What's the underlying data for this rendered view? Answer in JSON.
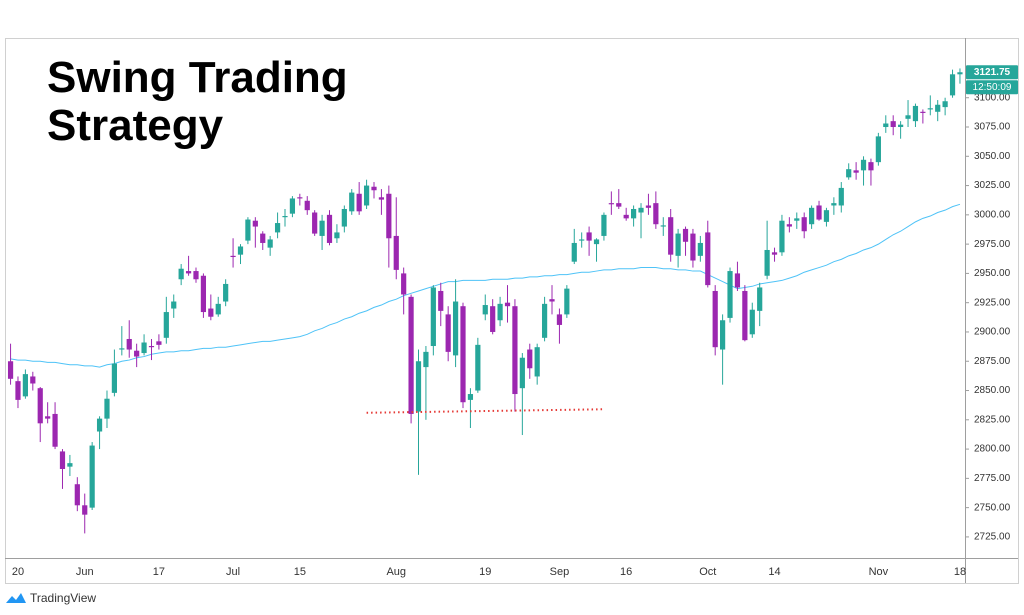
{
  "chart_data": {
    "type": "candlestick",
    "title": "Swing Trading Strategy",
    "brand": "TradingView",
    "up_color": "#26a69a",
    "down_color": "#9c27b0",
    "ylim": [
      2707,
      3151
    ],
    "yticks": [
      {
        "value": 2725,
        "label": "2725.00"
      },
      {
        "value": 2750,
        "label": "2750.00"
      },
      {
        "value": 2775,
        "label": "2775.00"
      },
      {
        "value": 2800,
        "label": "2800.00"
      },
      {
        "value": 2825,
        "label": "2825.00"
      },
      {
        "value": 2850,
        "label": "2850.00"
      },
      {
        "value": 2875,
        "label": "2875.00"
      },
      {
        "value": 2900,
        "label": "2900.00"
      },
      {
        "value": 2925,
        "label": "2925.00"
      },
      {
        "value": 2950,
        "label": "2950.00"
      },
      {
        "value": 2975,
        "label": "2975.00"
      },
      {
        "value": 3000,
        "label": "3000.00"
      },
      {
        "value": 3025,
        "label": "3025.00"
      },
      {
        "value": 3050,
        "label": "3050.00"
      },
      {
        "value": 3075,
        "label": "3075.00"
      },
      {
        "value": 3100,
        "label": "3100.00"
      }
    ],
    "grid": false,
    "last_price": 3121.75,
    "countdown": "12:50:09",
    "categories": [
      null,
      "20",
      null,
      null,
      null,
      null,
      null,
      null,
      null,
      null,
      "Jun",
      null,
      null,
      null,
      null,
      null,
      null,
      null,
      null,
      null,
      "17",
      null,
      null,
      null,
      null,
      null,
      null,
      null,
      null,
      null,
      "Jul",
      null,
      null,
      null,
      null,
      null,
      null,
      null,
      null,
      "15",
      null,
      null,
      null,
      null,
      null,
      null,
      null,
      null,
      null,
      null,
      null,
      null,
      "Aug",
      null,
      null,
      null,
      null,
      null,
      null,
      null,
      null,
      null,
      null,
      null,
      "19",
      null,
      null,
      null,
      null,
      null,
      null,
      null,
      null,
      null,
      "Sep",
      null,
      null,
      null,
      null,
      null,
      null,
      null,
      null,
      "16",
      null,
      null,
      null,
      null,
      null,
      null,
      null,
      null,
      null,
      null,
      "Oct",
      null,
      null,
      null,
      null,
      null,
      null,
      null,
      null,
      "14",
      null,
      null,
      null,
      null,
      null,
      null,
      null,
      null,
      null,
      null,
      null,
      null,
      null,
      "Nov",
      null,
      null,
      null,
      null,
      null,
      null,
      null,
      null,
      null,
      null,
      "18"
    ],
    "open": [
      2875,
      2858,
      2845,
      2862,
      2852,
      2828,
      2830,
      2798,
      2785,
      2770,
      2752,
      2750,
      2815,
      2826,
      2848,
      2885,
      2894,
      2884,
      2882,
      2888,
      2892,
      2895,
      2920,
      2945,
      2952,
      2952,
      2948,
      2920,
      2915,
      2926,
      2965,
      2966,
      2978,
      2995,
      2984,
      2972,
      2985,
      2998,
      3001,
      3015,
      3012,
      3002,
      2982,
      3000,
      2980,
      2990,
      3003,
      3018,
      3008,
      3024,
      3015,
      3018,
      2982,
      2950,
      2930,
      2832,
      2870,
      2888,
      2935,
      2915,
      2880,
      2922,
      2842,
      2850,
      2915,
      2922,
      2910,
      2925,
      2922,
      2852,
      2885,
      2862,
      2895,
      2928,
      2915,
      2915,
      2960,
      2978,
      2985,
      2975,
      2982,
      3010,
      3010,
      3000,
      2997,
      3002,
      3008,
      3010,
      2990,
      2998,
      2965,
      2988,
      2984,
      2965,
      2985,
      2935,
      2885,
      2912,
      2950,
      2935,
      2898,
      2918,
      2948,
      2968,
      2968,
      2992,
      2995,
      2998,
      2992,
      3008,
      2994,
      3008,
      3008,
      3032,
      3038,
      3038,
      3045,
      3045,
      3075,
      3080,
      3075,
      3082,
      3080,
      3088,
      3090,
      3088,
      3092,
      3102,
      3120
    ],
    "high": [
      2890,
      2862,
      2868,
      2866,
      2853,
      2840,
      2840,
      2800,
      2795,
      2776,
      2762,
      2806,
      2828,
      2850,
      2885,
      2905,
      2910,
      2890,
      2898,
      2894,
      2898,
      2930,
      2932,
      2958,
      2965,
      2955,
      2950,
      2932,
      2930,
      2945,
      2980,
      2975,
      2998,
      2998,
      2986,
      2982,
      3002,
      3005,
      3016,
      3018,
      3016,
      3004,
      3000,
      3004,
      2992,
      3008,
      3022,
      3028,
      3030,
      3028,
      3022,
      3025,
      3015,
      2955,
      2932,
      2885,
      2888,
      2940,
      2942,
      2922,
      2945,
      2925,
      2852,
      2895,
      2932,
      2928,
      2930,
      2940,
      2928,
      2882,
      2890,
      2890,
      2930,
      2940,
      2920,
      2940,
      2988,
      2985,
      2990,
      2980,
      3002,
      3020,
      3022,
      3006,
      3008,
      3010,
      3018,
      3020,
      2998,
      3005,
      2988,
      2990,
      2988,
      2982,
      2995,
      2940,
      2915,
      2955,
      2960,
      2940,
      2925,
      2942,
      2995,
      2972,
      3000,
      2998,
      3002,
      3002,
      3008,
      3012,
      3006,
      3015,
      3028,
      3044,
      3045,
      3050,
      3048,
      3070,
      3085,
      3085,
      3080,
      3098,
      3095,
      3090,
      3102,
      3098,
      3100,
      3124,
      3125
    ],
    "low": [
      2855,
      2835,
      2843,
      2850,
      2806,
      2822,
      2800,
      2766,
      2777,
      2747,
      2728,
      2748,
      2800,
      2818,
      2845,
      2880,
      2878,
      2870,
      2880,
      2876,
      2885,
      2890,
      2912,
      2940,
      2948,
      2942,
      2912,
      2910,
      2913,
      2922,
      2955,
      2958,
      2975,
      2972,
      2970,
      2965,
      2980,
      2990,
      2998,
      3008,
      3000,
      2982,
      2970,
      2974,
      2976,
      2985,
      3000,
      3000,
      3005,
      3014,
      3000,
      2955,
      2945,
      2915,
      2822,
      2778,
      2825,
      2880,
      2905,
      2875,
      2870,
      2835,
      2818,
      2848,
      2910,
      2898,
      2905,
      2908,
      2832,
      2812,
      2860,
      2855,
      2892,
      2915,
      2890,
      2912,
      2958,
      2972,
      2965,
      2960,
      2978,
      3000,
      3005,
      2995,
      2990,
      2980,
      3000,
      2988,
      2982,
      2960,
      2955,
      2965,
      2955,
      2960,
      2938,
      2880,
      2855,
      2908,
      2935,
      2892,
      2895,
      2905,
      2945,
      2960,
      2965,
      2985,
      2988,
      2980,
      2988,
      2995,
      2990,
      3000,
      3002,
      3030,
      3030,
      3025,
      3025,
      3042,
      3070,
      3068,
      3065,
      3075,
      3075,
      3078,
      3085,
      3080,
      3085,
      3100,
      3112
    ],
    "close": [
      2860,
      2842,
      2864,
      2856,
      2822,
      2826,
      2802,
      2783,
      2788,
      2752,
      2744,
      2803,
      2826,
      2843,
      2873,
      2886,
      2885,
      2879,
      2891,
      2887,
      2889,
      2917,
      2926,
      2954,
      2950,
      2945,
      2917,
      2913,
      2924,
      2941,
      2964,
      2973,
      2996,
      2990,
      2976,
      2979,
      2993,
      2999,
      3014,
      3014,
      3004,
      2984,
      2995,
      2976,
      2985,
      3005,
      3019,
      3003,
      3025,
      3021,
      3013,
      2980,
      2953,
      2932,
      2830,
      2875,
      2883,
      2938,
      2918,
      2883,
      2926,
      2840,
      2847,
      2889,
      2923,
      2900,
      2924,
      2922,
      2847,
      2878,
      2869,
      2887,
      2924,
      2926,
      2906,
      2937,
      2976,
      2979,
      2978,
      2979,
      3000,
      3009,
      3007,
      2997,
      3005,
      3006,
      3006,
      2992,
      2991,
      2966,
      2984,
      2977,
      2961,
      2976,
      2940,
      2887,
      2910,
      2952,
      2938,
      2893,
      2919,
      2938,
      2970,
      2966,
      2995,
      2990,
      2997,
      2986,
      3006,
      2996,
      3004,
      3010,
      3023,
      3039,
      3036,
      3047,
      3038,
      3067,
      3078,
      3075,
      3077,
      3085,
      3093,
      3087,
      3091,
      3094,
      3097,
      3120,
      3121.75
    ],
    "moving_average": {
      "color": "#4fc3f7",
      "values": [
        2877,
        2876,
        2876,
        2875,
        2875,
        2874,
        2874,
        2873,
        2872,
        2872,
        2871,
        2871,
        2870,
        2872,
        2873,
        2875,
        2876,
        2878,
        2879,
        2881,
        2882,
        2883,
        2883,
        2884,
        2884,
        2885,
        2886,
        2886,
        2887,
        2887,
        2888,
        2889,
        2890,
        2891,
        2892,
        2892,
        2893,
        2894,
        2895,
        2896,
        2898,
        2901,
        2903,
        2906,
        2908,
        2911,
        2913,
        2916,
        2918,
        2921,
        2923,
        2926,
        2928,
        2931,
        2933,
        2935,
        2937,
        2939,
        2941,
        2943,
        2943,
        2944,
        2944,
        2944,
        2944,
        2945,
        2945,
        2945,
        2946,
        2946,
        2947,
        2947,
        2948,
        2948,
        2949,
        2949,
        2950,
        2951,
        2951,
        2952,
        2953,
        2953,
        2954,
        2954,
        2954,
        2955,
        2955,
        2955,
        2954,
        2954,
        2953,
        2953,
        2952,
        2952,
        2949,
        2946,
        2943,
        2940,
        2937,
        2938,
        2939,
        2941,
        2942,
        2943,
        2944,
        2946,
        2948,
        2951,
        2953,
        2955,
        2957,
        2960,
        2962,
        2965,
        2967,
        2970,
        2972,
        2975,
        2979,
        2983,
        2986,
        2990,
        2994,
        2997,
        2999,
        3002,
        3004,
        3007,
        3009
      ]
    },
    "trendline": {
      "color": "#e53935",
      "x": [
        48,
        80
      ],
      "values": [
        2831,
        2834
      ]
    }
  }
}
